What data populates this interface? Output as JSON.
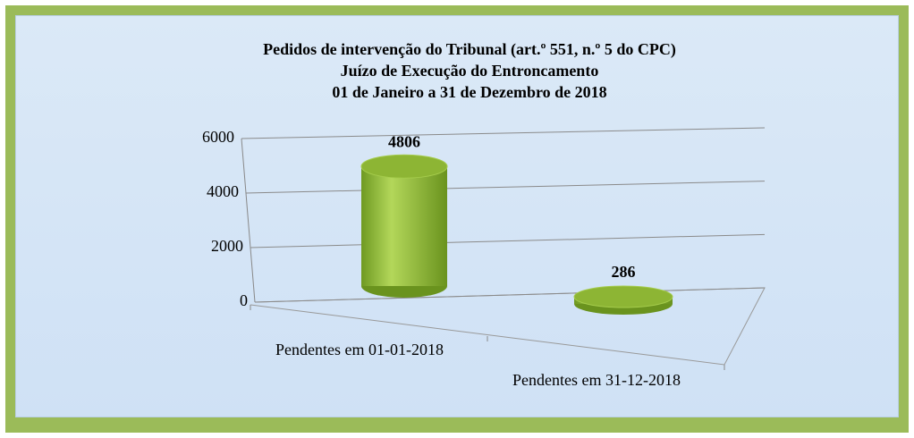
{
  "chart_data": {
    "type": "bar3d",
    "title": [
      "Pedidos de intervenção do Tribunal (art.º 551, n.º 5 do CPC)",
      "Juízo de Execução do Entroncamento",
      "01 de Janeiro a 31 de Dezembro de 2018"
    ],
    "categories": [
      "Pendentes em 01-01-2018",
      "Pendentes em 31-12-2018"
    ],
    "values": [
      4806,
      286
    ],
    "color": "#8db534",
    "ylim": [
      0,
      6000
    ],
    "yticks": [
      0,
      2000,
      4000,
      6000
    ],
    "grid": true
  }
}
